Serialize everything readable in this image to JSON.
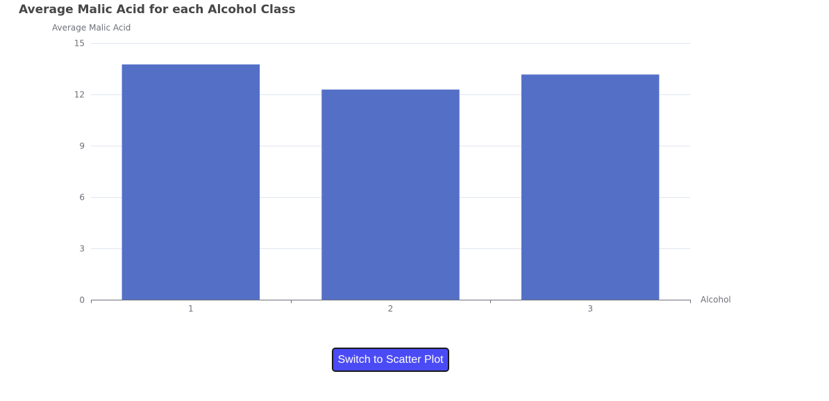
{
  "chart_data": {
    "type": "bar",
    "title": "Average Malic Acid for each Alcohol Class",
    "xlabel": "Alcohol",
    "ylabel": "Average Malic Acid",
    "categories": [
      "1",
      "2",
      "3"
    ],
    "values": [
      13.75,
      12.28,
      13.16
    ],
    "ylim": [
      0,
      15
    ],
    "yticks": [
      0,
      3,
      6,
      9,
      12,
      15
    ],
    "grid": true,
    "bar_color": "#5470c6"
  },
  "controls": {
    "switch_label": "Switch to Scatter Plot",
    "button_color": "#4b4bf5"
  }
}
